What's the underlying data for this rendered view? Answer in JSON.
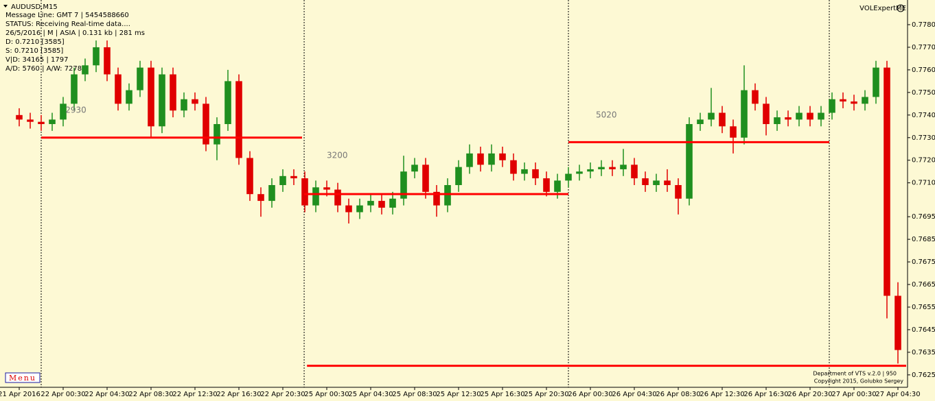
{
  "chart_data": {
    "type": "candlestick",
    "symbol": "AUDUSD,M15",
    "info": [
      "Message Line: GMT 7 | 5454588660",
      "STATUS:  Receiving Real-time data....",
      "26/5/2016 | M | ASIA | 0.131 kb | 281 ms",
      "D: 0.7210  [3585]",
      "S: 0.7210  [3585]",
      "V|D: 34165 | 1797",
      "A/D: 5760 | A/W: 7278"
    ],
    "indicator": "VOLExpertME",
    "footer": [
      "Department of VTS  v.2.0 | 950",
      "Copyright 2015, Golubko Sergey"
    ],
    "menu": "Menu",
    "bull_color": "#1f8f1f",
    "bear_color": "#e00000",
    "level_color": "#ff0000",
    "x": [
      0,
      1,
      2,
      3,
      4,
      5,
      6,
      7,
      8,
      9,
      10,
      11,
      12,
      13,
      14,
      15,
      16,
      17,
      18,
      19,
      20,
      21,
      22,
      23,
      24,
      25,
      26,
      27,
      28,
      29,
      30,
      31,
      32,
      33,
      34,
      35,
      36,
      37,
      38,
      39,
      40,
      41,
      42,
      43,
      44,
      45,
      46,
      47,
      48,
      49,
      50,
      51,
      52,
      53,
      54,
      55,
      56,
      57,
      58,
      59,
      60,
      61,
      62,
      63,
      64,
      65,
      66,
      67,
      68,
      69,
      70,
      71,
      72,
      73,
      74,
      75,
      76,
      77,
      78,
      79,
      80
    ],
    "open": [
      0.774,
      0.7738,
      0.7737,
      0.7736,
      0.7738,
      0.7745,
      0.7758,
      0.7762,
      0.777,
      0.7758,
      0.7745,
      0.7751,
      0.7761,
      0.7735,
      0.7758,
      0.7742,
      0.7747,
      0.7745,
      0.7727,
      0.7736,
      0.7755,
      0.7721,
      0.7705,
      0.7702,
      0.7709,
      0.7713,
      0.7712,
      0.77,
      0.7708,
      0.7707,
      0.77,
      0.7697,
      0.77,
      0.7702,
      0.7699,
      0.7703,
      0.7715,
      0.7718,
      0.7706,
      0.77,
      0.7709,
      0.7717,
      0.7723,
      0.7718,
      0.7723,
      0.772,
      0.7714,
      0.7716,
      0.7712,
      0.7706,
      0.7711,
      0.7714,
      0.7715,
      0.7716,
      0.7717,
      0.7716,
      0.7718,
      0.7712,
      0.7709,
      0.7711,
      0.7709,
      0.7703,
      0.7736,
      0.7738,
      0.7741,
      0.7735,
      0.773,
      0.7751,
      0.7745,
      0.7736,
      0.7739,
      0.7738,
      0.7741,
      0.7738,
      0.7741,
      0.7747,
      0.7746,
      0.7745,
      0.7748,
      0.7761,
      0.766
    ],
    "high": [
      0.7743,
      0.7741,
      0.774,
      0.7741,
      0.7748,
      0.7761,
      0.7765,
      0.7773,
      0.7773,
      0.7761,
      0.7754,
      0.7764,
      0.7764,
      0.7761,
      0.7761,
      0.775,
      0.775,
      0.7748,
      0.7739,
      0.776,
      0.7758,
      0.7724,
      0.7708,
      0.7712,
      0.7716,
      0.7716,
      0.7715,
      0.7711,
      0.7711,
      0.771,
      0.7703,
      0.7703,
      0.7705,
      0.7705,
      0.7706,
      0.7722,
      0.7721,
      0.7721,
      0.7709,
      0.7712,
      0.772,
      0.7727,
      0.7726,
      0.7727,
      0.7726,
      0.7723,
      0.7719,
      0.7719,
      0.7715,
      0.7714,
      0.7717,
      0.7718,
      0.7719,
      0.772,
      0.772,
      0.7725,
      0.7721,
      0.7715,
      0.7714,
      0.7716,
      0.7712,
      0.7739,
      0.7741,
      0.7752,
      0.7744,
      0.7738,
      0.7762,
      0.7754,
      0.7748,
      0.7742,
      0.7742,
      0.7744,
      0.7744,
      0.7744,
      0.775,
      0.775,
      0.7749,
      0.7751,
      0.7764,
      0.7764,
      0.7666
    ],
    "low": [
      0.7735,
      0.7734,
      0.7733,
      0.7733,
      0.7735,
      0.7742,
      0.7755,
      0.7759,
      0.7755,
      0.7742,
      0.7742,
      0.7748,
      0.773,
      0.7732,
      0.7739,
      0.7739,
      0.7742,
      0.7724,
      0.772,
      0.7733,
      0.7718,
      0.7702,
      0.7695,
      0.7699,
      0.7706,
      0.7709,
      0.7697,
      0.7697,
      0.7704,
      0.7697,
      0.7692,
      0.7694,
      0.7697,
      0.7696,
      0.7696,
      0.77,
      0.7712,
      0.7703,
      0.7695,
      0.7697,
      0.7706,
      0.7714,
      0.7715,
      0.7715,
      0.7717,
      0.7711,
      0.7711,
      0.7709,
      0.7704,
      0.7703,
      0.7708,
      0.7711,
      0.7712,
      0.7713,
      0.7713,
      0.7713,
      0.7709,
      0.7706,
      0.7706,
      0.7706,
      0.7696,
      0.77,
      0.7733,
      0.7735,
      0.7732,
      0.7723,
      0.7727,
      0.7742,
      0.7731,
      0.7733,
      0.7735,
      0.7735,
      0.7735,
      0.7735,
      0.7738,
      0.7743,
      0.7742,
      0.7742,
      0.7745,
      0.765,
      0.763
    ],
    "close": [
      0.7738,
      0.7737,
      0.7736,
      0.7738,
      0.7745,
      0.7758,
      0.7762,
      0.777,
      0.7758,
      0.7745,
      0.7751,
      0.7761,
      0.7735,
      0.7758,
      0.7742,
      0.7747,
      0.7745,
      0.7727,
      0.7736,
      0.7755,
      0.7721,
      0.7705,
      0.7702,
      0.7709,
      0.7713,
      0.7712,
      0.77,
      0.7708,
      0.7707,
      0.77,
      0.7697,
      0.77,
      0.7702,
      0.7699,
      0.7703,
      0.7715,
      0.7718,
      0.7706,
      0.77,
      0.7709,
      0.7717,
      0.7723,
      0.7718,
      0.7723,
      0.772,
      0.7714,
      0.7716,
      0.7712,
      0.7706,
      0.7711,
      0.7714,
      0.7715,
      0.7716,
      0.7717,
      0.7716,
      0.7718,
      0.7712,
      0.7709,
      0.7711,
      0.7709,
      0.7703,
      0.7736,
      0.7738,
      0.7741,
      0.7735,
      0.773,
      0.7751,
      0.7745,
      0.7736,
      0.7739,
      0.7738,
      0.7741,
      0.7738,
      0.7741,
      0.7747,
      0.7746,
      0.7745,
      0.7748,
      0.7761,
      0.766,
      0.7636
    ],
    "levels": [
      {
        "value": 0.773,
        "from": 2,
        "to": 25.75
      },
      {
        "value": 0.7705,
        "from": 25.94,
        "to": 50
      },
      {
        "value": 0.7728,
        "from": 50,
        "to": 73.75
      },
      {
        "value": 0.7629,
        "from": 26.2,
        "to": 80.75
      }
    ],
    "separators": [
      2,
      25.94,
      50,
      73.75
    ],
    "annotations": [
      {
        "text": "2930",
        "x": 4.2,
        "y": 0.7742
      },
      {
        "text": "3200",
        "x": 28,
        "y": 0.7722
      },
      {
        "text": "5020",
        "x": 52.5,
        "y": 0.774
      }
    ],
    "xlim": [
      -1.75,
      80.875
    ],
    "ylim": [
      0.76195,
      0.77894
    ],
    "xticks": [
      {
        "value": 0,
        "label": "21 Apr 2016"
      },
      {
        "value": 4,
        "label": "22 Apr 00:30"
      },
      {
        "value": 8,
        "label": "22 Apr 04:30"
      },
      {
        "value": 12,
        "label": "22 Apr 08:30"
      },
      {
        "value": 16,
        "label": "22 Apr 12:30"
      },
      {
        "value": 20,
        "label": "22 Apr 16:30"
      },
      {
        "value": 24,
        "label": "22 Apr 20:30"
      },
      {
        "value": 28,
        "label": "25 Apr 00:30"
      },
      {
        "value": 32,
        "label": "25 Apr 04:30"
      },
      {
        "value": 36,
        "label": "25 Apr 08:30"
      },
      {
        "value": 40,
        "label": "25 Apr 12:30"
      },
      {
        "value": 44,
        "label": "25 Apr 16:30"
      },
      {
        "value": 48,
        "label": "25 Apr 20:30"
      },
      {
        "value": 52,
        "label": "26 Apr 00:30"
      },
      {
        "value": 56,
        "label": "26 Apr 04:30"
      },
      {
        "value": 60,
        "label": "26 Apr 08:30"
      },
      {
        "value": 64,
        "label": "26 Apr 12:30"
      },
      {
        "value": 68,
        "label": "26 Apr 16:30"
      },
      {
        "value": 72,
        "label": "26 Apr 20:30"
      },
      {
        "value": 76,
        "label": "27 Apr 00:30"
      },
      {
        "value": 80,
        "label": "27 Apr 04:30"
      }
    ],
    "yticks": [
      {
        "value": 0.778,
        "label": "0.7780"
      },
      {
        "value": 0.777,
        "label": "0.7770"
      },
      {
        "value": 0.776,
        "label": "0.7760"
      },
      {
        "value": 0.775,
        "label": "0.7750"
      },
      {
        "value": 0.774,
        "label": "0.7740"
      },
      {
        "value": 0.773,
        "label": "0.7730"
      },
      {
        "value": 0.772,
        "label": "0.7720"
      },
      {
        "value": 0.771,
        "label": "0.7710"
      },
      {
        "value": 0.7695,
        "label": "0.7695"
      },
      {
        "value": 0.7685,
        "label": "0.7685"
      },
      {
        "value": 0.7675,
        "label": "0.7675"
      },
      {
        "value": 0.7665,
        "label": "0.7665"
      },
      {
        "value": 0.7655,
        "label": "0.7655"
      },
      {
        "value": 0.7645,
        "label": "0.7645"
      },
      {
        "value": 0.7635,
        "label": "0.7635"
      },
      {
        "value": 0.7625,
        "label": "0.7625"
      }
    ]
  }
}
